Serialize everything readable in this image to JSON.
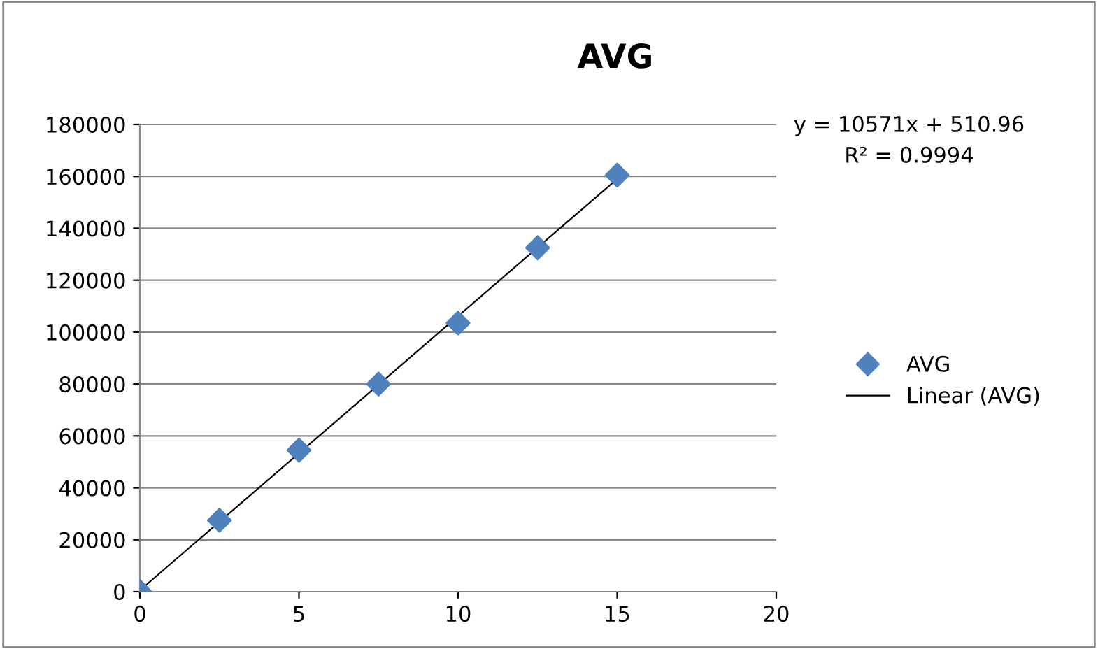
{
  "chart_data": {
    "type": "scatter",
    "title": "AVG",
    "x": [
      0,
      2.5,
      5,
      7.5,
      10,
      12.5,
      15
    ],
    "series": [
      {
        "name": "AVG",
        "color": "#4f81bd",
        "marker": "diamond",
        "values": [
          0,
          27500,
          54500,
          80000,
          103500,
          132500,
          160500
        ]
      },
      {
        "name": "Linear (AVG)",
        "type": "line",
        "color": "#000000",
        "line_style": "solid",
        "marker": "none",
        "x": [
          0,
          15
        ],
        "values": [
          500,
          159000
        ]
      }
    ],
    "annotations": [
      "y = 10571x + 510.96",
      "R² = 0.9994"
    ],
    "xlim": [
      0,
      20
    ],
    "xticks": [
      0,
      5,
      10,
      15,
      20
    ],
    "ylim": [
      0,
      180000
    ],
    "yticks": [
      0,
      20000,
      40000,
      60000,
      80000,
      100000,
      120000,
      140000,
      160000,
      180000
    ],
    "grid": "y",
    "legend": "right"
  }
}
